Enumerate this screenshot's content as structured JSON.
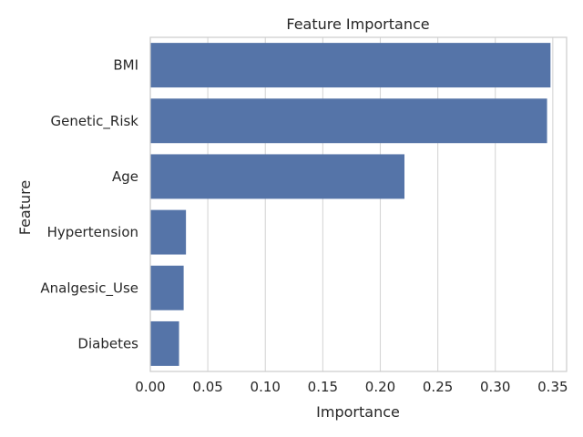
{
  "chart_data": {
    "type": "bar",
    "orientation": "horizontal",
    "title": "Feature Importance",
    "xlabel": "Importance",
    "ylabel": "Feature",
    "categories": [
      "BMI",
      "Genetic_Risk",
      "Age",
      "Hypertension",
      "Analgesic_Use",
      "Diabetes"
    ],
    "values": [
      0.348,
      0.345,
      0.221,
      0.031,
      0.029,
      0.025
    ],
    "xlim": [
      0,
      0.362
    ],
    "xticks": [
      "0.00",
      "0.05",
      "0.10",
      "0.15",
      "0.20",
      "0.25",
      "0.30",
      "0.35"
    ],
    "grid": true,
    "bar_color": "#5574a8"
  }
}
